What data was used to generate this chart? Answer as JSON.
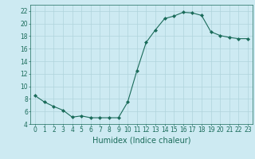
{
  "x": [
    0,
    1,
    2,
    3,
    4,
    5,
    6,
    7,
    8,
    9,
    10,
    11,
    12,
    13,
    14,
    15,
    16,
    17,
    18,
    19,
    20,
    21,
    22,
    23
  ],
  "y": [
    8.5,
    7.5,
    6.8,
    6.2,
    5.1,
    5.3,
    5.0,
    5.0,
    5.0,
    5.0,
    7.5,
    12.5,
    17.0,
    19.0,
    20.8,
    21.2,
    21.8,
    21.7,
    21.3,
    18.7,
    18.1,
    17.8,
    17.6,
    17.6
  ],
  "line_color": "#1a6b5a",
  "marker": "D",
  "marker_size": 2.0,
  "bg_color": "#cdeaf2",
  "grid_color": "#afd4dc",
  "xlabel": "Humidex (Indice chaleur)",
  "ylim": [
    4,
    23
  ],
  "xlim": [
    -0.5,
    23.5
  ],
  "yticks": [
    4,
    6,
    8,
    10,
    12,
    14,
    16,
    18,
    20,
    22
  ],
  "xticks": [
    0,
    1,
    2,
    3,
    4,
    5,
    6,
    7,
    8,
    9,
    10,
    11,
    12,
    13,
    14,
    15,
    16,
    17,
    18,
    19,
    20,
    21,
    22,
    23
  ],
  "tick_label_size": 5.5,
  "xlabel_size": 7.0,
  "linewidth": 0.8
}
